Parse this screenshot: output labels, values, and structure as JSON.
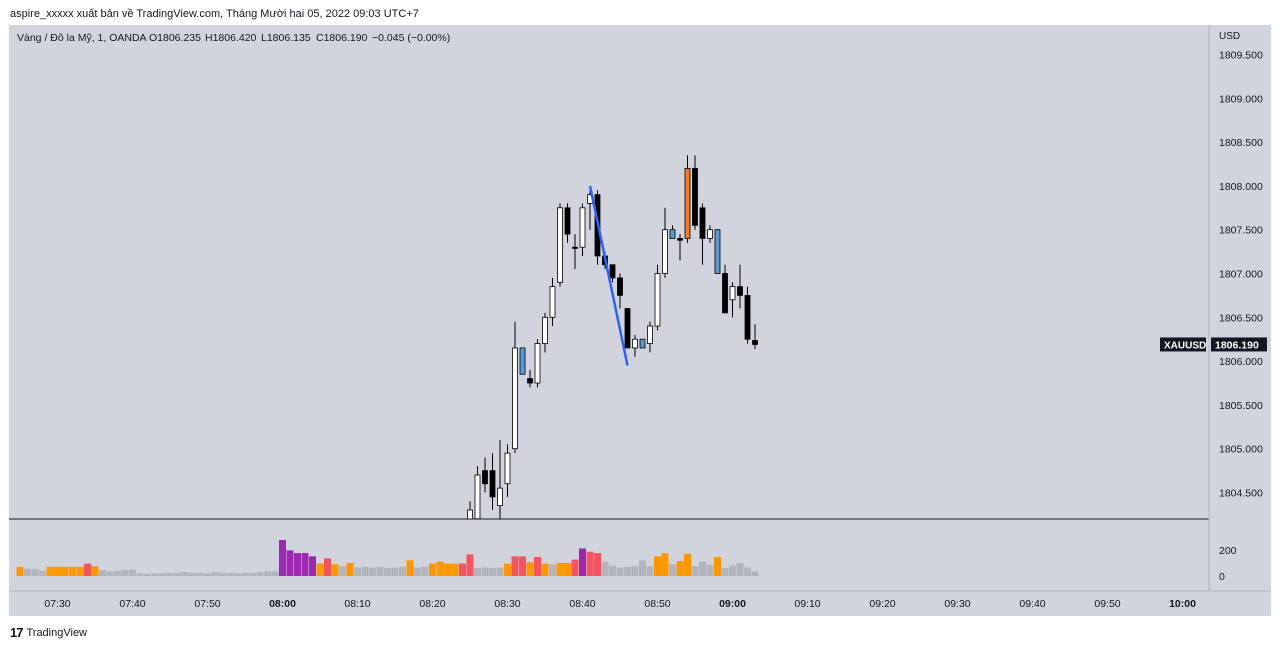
{
  "header": {
    "published_line": "aspire_xxxxx xuất bản về TradingView.com, Tháng Mười hai 05, 2022 09:03 UTC+7"
  },
  "legend": {
    "symbol_line": "Vàng / Đô la Mỹ, 1, OANDA",
    "open": "O1806.235",
    "high": "H1806.420",
    "low": "L1806.135",
    "close": "C1806.190",
    "change": "−0.045 (−0.00%)"
  },
  "price_axis": {
    "currency": "USD",
    "ticks": [
      "1809.500",
      "1809.000",
      "1808.500",
      "1808.000",
      "1807.500",
      "1807.000",
      "1806.500",
      "1806.000",
      "1805.500",
      "1805.000",
      "1804.500"
    ]
  },
  "last_price": {
    "symbol": "XAUUSD",
    "price": "1806.190"
  },
  "volume_axis": {
    "ticks": [
      "200",
      "0"
    ]
  },
  "time_axis": {
    "ticks": [
      "07:30",
      "07:40",
      "07:50",
      "08:00",
      "08:10",
      "08:20",
      "08:30",
      "08:40",
      "08:50",
      "09:00",
      "09:10",
      "09:20",
      "09:30",
      "09:40",
      "09:50",
      "10:00"
    ],
    "bold_ticks": [
      "08:00",
      "09:00",
      "10:00"
    ]
  },
  "footer": {
    "brand": "TradingView",
    "logo_text": "17"
  },
  "colors": {
    "background": "#d1d4dc",
    "candle_up": "#ffffff",
    "candle_down": "#000000",
    "candle_blue": "#5b9bd5",
    "candle_orange": "#f57c20",
    "trendline": "#2962ff",
    "vol_orange": "#ff9800",
    "vol_purple": "#9c27b0",
    "vol_red": "#f7525f",
    "vol_gray": "#b2b5be"
  },
  "chart_data": {
    "type": "candlestick",
    "price_unit": "USD",
    "ylim": [
      1804.15,
      1809.9
    ],
    "x_range": [
      "07:25",
      "10:03"
    ],
    "candles": [
      {
        "t": "08:25",
        "o": 1804.15,
        "h": 1804.4,
        "l": 1804.15,
        "c": 1804.3,
        "color": "up"
      },
      {
        "t": "08:26",
        "o": 1804.2,
        "h": 1804.8,
        "l": 1804.15,
        "c": 1804.7,
        "color": "up"
      },
      {
        "t": "08:27",
        "o": 1804.75,
        "h": 1804.9,
        "l": 1804.5,
        "c": 1804.6,
        "color": "down"
      },
      {
        "t": "08:28",
        "o": 1804.75,
        "h": 1804.95,
        "l": 1804.3,
        "c": 1804.45,
        "color": "down"
      },
      {
        "t": "08:29",
        "o": 1804.55,
        "h": 1805.1,
        "l": 1804.15,
        "c": 1804.35,
        "color": "up"
      },
      {
        "t": "08:30",
        "o": 1804.6,
        "h": 1805.05,
        "l": 1804.45,
        "c": 1804.95,
        "color": "up"
      },
      {
        "t": "08:31",
        "o": 1805.0,
        "h": 1806.45,
        "l": 1804.95,
        "c": 1806.15,
        "color": "up"
      },
      {
        "t": "08:32",
        "o": 1806.15,
        "h": 1806.15,
        "l": 1805.85,
        "c": 1805.85,
        "color": "blue"
      },
      {
        "t": "08:33",
        "o": 1805.8,
        "h": 1805.9,
        "l": 1805.7,
        "c": 1805.75,
        "color": "down"
      },
      {
        "t": "08:34",
        "o": 1805.75,
        "h": 1806.25,
        "l": 1805.7,
        "c": 1806.2,
        "color": "up"
      },
      {
        "t": "08:35",
        "o": 1806.2,
        "h": 1806.55,
        "l": 1806.1,
        "c": 1806.5,
        "color": "up"
      },
      {
        "t": "08:36",
        "o": 1806.5,
        "h": 1806.95,
        "l": 1806.4,
        "c": 1806.85,
        "color": "up"
      },
      {
        "t": "08:37",
        "o": 1806.9,
        "h": 1807.8,
        "l": 1806.85,
        "c": 1807.75,
        "color": "up"
      },
      {
        "t": "08:38",
        "o": 1807.75,
        "h": 1807.8,
        "l": 1807.35,
        "c": 1807.45,
        "color": "down"
      },
      {
        "t": "08:39",
        "o": 1807.3,
        "h": 1807.45,
        "l": 1807.05,
        "c": 1807.3,
        "color": "down"
      },
      {
        "t": "08:40",
        "o": 1807.3,
        "h": 1807.8,
        "l": 1807.2,
        "c": 1807.75,
        "color": "up"
      },
      {
        "t": "08:41",
        "o": 1807.8,
        "h": 1807.95,
        "l": 1807.5,
        "c": 1807.9,
        "color": "up"
      },
      {
        "t": "08:42",
        "o": 1807.9,
        "h": 1807.95,
        "l": 1807.1,
        "c": 1807.2,
        "color": "down"
      },
      {
        "t": "08:43",
        "o": 1807.2,
        "h": 1807.25,
        "l": 1807.05,
        "c": 1807.1,
        "color": "down"
      },
      {
        "t": "08:44",
        "o": 1807.1,
        "h": 1807.1,
        "l": 1806.9,
        "c": 1806.95,
        "color": "down"
      },
      {
        "t": "08:45",
        "o": 1806.95,
        "h": 1807.0,
        "l": 1806.6,
        "c": 1806.75,
        "color": "down"
      },
      {
        "t": "08:46",
        "o": 1806.6,
        "h": 1806.6,
        "l": 1806.15,
        "c": 1806.15,
        "color": "down"
      },
      {
        "t": "08:47",
        "o": 1806.15,
        "h": 1806.3,
        "l": 1806.05,
        "c": 1806.25,
        "color": "up"
      },
      {
        "t": "08:48",
        "o": 1806.25,
        "h": 1806.25,
        "l": 1806.15,
        "c": 1806.15,
        "color": "blue"
      },
      {
        "t": "08:49",
        "o": 1806.2,
        "h": 1806.45,
        "l": 1806.1,
        "c": 1806.4,
        "color": "up"
      },
      {
        "t": "08:50",
        "o": 1806.4,
        "h": 1807.1,
        "l": 1806.35,
        "c": 1807.0,
        "color": "up"
      },
      {
        "t": "08:51",
        "o": 1807.0,
        "h": 1807.75,
        "l": 1806.95,
        "c": 1807.5,
        "color": "up"
      },
      {
        "t": "08:52",
        "o": 1807.5,
        "h": 1807.55,
        "l": 1807.4,
        "c": 1807.4,
        "color": "blue"
      },
      {
        "t": "08:53",
        "o": 1807.4,
        "h": 1807.45,
        "l": 1807.15,
        "c": 1807.38,
        "color": "down"
      },
      {
        "t": "08:54",
        "o": 1807.4,
        "h": 1808.35,
        "l": 1807.35,
        "c": 1808.2,
        "color": "orange"
      },
      {
        "t": "08:55",
        "o": 1808.2,
        "h": 1808.35,
        "l": 1807.5,
        "c": 1807.55,
        "color": "down"
      },
      {
        "t": "08:56",
        "o": 1807.75,
        "h": 1807.8,
        "l": 1807.1,
        "c": 1807.4,
        "color": "down"
      },
      {
        "t": "08:57",
        "o": 1807.4,
        "h": 1807.55,
        "l": 1807.35,
        "c": 1807.5,
        "color": "up"
      },
      {
        "t": "08:58",
        "o": 1807.5,
        "h": 1807.5,
        "l": 1807.0,
        "c": 1807.0,
        "color": "blue"
      },
      {
        "t": "08:59",
        "o": 1807.0,
        "h": 1807.1,
        "l": 1806.55,
        "c": 1806.55,
        "color": "down"
      },
      {
        "t": "09:00",
        "o": 1806.7,
        "h": 1806.9,
        "l": 1806.5,
        "c": 1806.85,
        "color": "up"
      },
      {
        "t": "09:01",
        "o": 1806.85,
        "h": 1807.1,
        "l": 1806.6,
        "c": 1806.75,
        "color": "down"
      },
      {
        "t": "09:02",
        "o": 1806.75,
        "h": 1806.85,
        "l": 1806.2,
        "c": 1806.25,
        "color": "down"
      },
      {
        "t": "09:03",
        "o": 1806.235,
        "h": 1806.42,
        "l": 1806.135,
        "c": 1806.19,
        "color": "down"
      }
    ],
    "trendline": {
      "from": {
        "t": "08:41",
        "price": 1808.0
      },
      "to": {
        "t": "08:46",
        "price": 1805.95
      }
    },
    "volume": [
      {
        "t": "07:25",
        "v": 70,
        "c": "orange"
      },
      {
        "t": "07:26",
        "v": 55,
        "c": "gray"
      },
      {
        "t": "07:27",
        "v": 55,
        "c": "gray"
      },
      {
        "t": "07:28",
        "v": 40,
        "c": "gray"
      },
      {
        "t": "07:29",
        "v": 70,
        "c": "orange"
      },
      {
        "t": "07:30",
        "v": 70,
        "c": "orange"
      },
      {
        "t": "07:31",
        "v": 70,
        "c": "orange"
      },
      {
        "t": "07:32",
        "v": 70,
        "c": "orange"
      },
      {
        "t": "07:33",
        "v": 70,
        "c": "orange"
      },
      {
        "t": "07:34",
        "v": 95,
        "c": "red"
      },
      {
        "t": "07:35",
        "v": 75,
        "c": "orange"
      },
      {
        "t": "07:36",
        "v": 45,
        "c": "gray"
      },
      {
        "t": "07:37",
        "v": 35,
        "c": "gray"
      },
      {
        "t": "07:38",
        "v": 40,
        "c": "gray"
      },
      {
        "t": "07:39",
        "v": 45,
        "c": "gray"
      },
      {
        "t": "07:40",
        "v": 50,
        "c": "gray"
      },
      {
        "t": "07:41",
        "v": 20,
        "c": "gray"
      },
      {
        "t": "07:42",
        "v": 15,
        "c": "gray"
      },
      {
        "t": "07:43",
        "v": 20,
        "c": "gray"
      },
      {
        "t": "07:44",
        "v": 20,
        "c": "gray"
      },
      {
        "t": "07:45",
        "v": 25,
        "c": "gray"
      },
      {
        "t": "07:46",
        "v": 25,
        "c": "gray"
      },
      {
        "t": "07:47",
        "v": 30,
        "c": "gray"
      },
      {
        "t": "07:48",
        "v": 25,
        "c": "gray"
      },
      {
        "t": "07:49",
        "v": 25,
        "c": "gray"
      },
      {
        "t": "07:50",
        "v": 20,
        "c": "gray"
      },
      {
        "t": "07:51",
        "v": 30,
        "c": "gray"
      },
      {
        "t": "07:52",
        "v": 25,
        "c": "gray"
      },
      {
        "t": "07:53",
        "v": 25,
        "c": "gray"
      },
      {
        "t": "07:54",
        "v": 20,
        "c": "gray"
      },
      {
        "t": "07:55",
        "v": 25,
        "c": "gray"
      },
      {
        "t": "07:56",
        "v": 25,
        "c": "gray"
      },
      {
        "t": "07:57",
        "v": 30,
        "c": "gray"
      },
      {
        "t": "07:58",
        "v": 35,
        "c": "gray"
      },
      {
        "t": "07:59",
        "v": 35,
        "c": "gray"
      },
      {
        "t": "08:00",
        "v": 275,
        "c": "purple"
      },
      {
        "t": "08:01",
        "v": 195,
        "c": "purple"
      },
      {
        "t": "08:02",
        "v": 175,
        "c": "purple"
      },
      {
        "t": "08:03",
        "v": 175,
        "c": "purple"
      },
      {
        "t": "08:04",
        "v": 150,
        "c": "purple"
      },
      {
        "t": "08:05",
        "v": 95,
        "c": "orange"
      },
      {
        "t": "08:06",
        "v": 135,
        "c": "red"
      },
      {
        "t": "08:07",
        "v": 90,
        "c": "orange"
      },
      {
        "t": "08:08",
        "v": 75,
        "c": "gray"
      },
      {
        "t": "08:09",
        "v": 100,
        "c": "orange"
      },
      {
        "t": "08:10",
        "v": 65,
        "c": "gray"
      },
      {
        "t": "08:11",
        "v": 70,
        "c": "gray"
      },
      {
        "t": "08:12",
        "v": 65,
        "c": "gray"
      },
      {
        "t": "08:13",
        "v": 70,
        "c": "gray"
      },
      {
        "t": "08:14",
        "v": 60,
        "c": "gray"
      },
      {
        "t": "08:15",
        "v": 65,
        "c": "gray"
      },
      {
        "t": "08:16",
        "v": 70,
        "c": "gray"
      },
      {
        "t": "08:17",
        "v": 120,
        "c": "orange"
      },
      {
        "t": "08:18",
        "v": 65,
        "c": "gray"
      },
      {
        "t": "08:19",
        "v": 70,
        "c": "gray"
      },
      {
        "t": "08:20",
        "v": 95,
        "c": "orange"
      },
      {
        "t": "08:21",
        "v": 110,
        "c": "orange"
      },
      {
        "t": "08:22",
        "v": 95,
        "c": "orange"
      },
      {
        "t": "08:23",
        "v": 95,
        "c": "orange"
      },
      {
        "t": "08:24",
        "v": 95,
        "c": "red"
      },
      {
        "t": "08:25",
        "v": 165,
        "c": "red"
      },
      {
        "t": "08:26",
        "v": 60,
        "c": "gray"
      },
      {
        "t": "08:27",
        "v": 65,
        "c": "gray"
      },
      {
        "t": "08:28",
        "v": 60,
        "c": "gray"
      },
      {
        "t": "08:29",
        "v": 65,
        "c": "gray"
      },
      {
        "t": "08:30",
        "v": 95,
        "c": "orange"
      },
      {
        "t": "08:31",
        "v": 150,
        "c": "red"
      },
      {
        "t": "08:32",
        "v": 150,
        "c": "red"
      },
      {
        "t": "08:33",
        "v": 105,
        "c": "orange"
      },
      {
        "t": "08:34",
        "v": 145,
        "c": "red"
      },
      {
        "t": "08:35",
        "v": 95,
        "c": "orange"
      },
      {
        "t": "08:36",
        "v": 90,
        "c": "gray"
      },
      {
        "t": "08:37",
        "v": 100,
        "c": "orange"
      },
      {
        "t": "08:38",
        "v": 100,
        "c": "orange"
      },
      {
        "t": "08:39",
        "v": 125,
        "c": "red"
      },
      {
        "t": "08:40",
        "v": 210,
        "c": "purple"
      },
      {
        "t": "08:41",
        "v": 185,
        "c": "red"
      },
      {
        "t": "08:42",
        "v": 175,
        "c": "red"
      },
      {
        "t": "08:43",
        "v": 110,
        "c": "gray"
      },
      {
        "t": "08:44",
        "v": 80,
        "c": "gray"
      },
      {
        "t": "08:45",
        "v": 65,
        "c": "gray"
      },
      {
        "t": "08:46",
        "v": 70,
        "c": "gray"
      },
      {
        "t": "08:47",
        "v": 75,
        "c": "gray"
      },
      {
        "t": "08:48",
        "v": 120,
        "c": "gray"
      },
      {
        "t": "08:49",
        "v": 75,
        "c": "gray"
      },
      {
        "t": "08:50",
        "v": 150,
        "c": "orange"
      },
      {
        "t": "08:51",
        "v": 175,
        "c": "orange"
      },
      {
        "t": "08:52",
        "v": 90,
        "c": "gray"
      },
      {
        "t": "08:53",
        "v": 115,
        "c": "orange"
      },
      {
        "t": "08:54",
        "v": 170,
        "c": "orange"
      },
      {
        "t": "08:55",
        "v": 75,
        "c": "gray"
      },
      {
        "t": "08:56",
        "v": 110,
        "c": "gray"
      },
      {
        "t": "08:57",
        "v": 85,
        "c": "gray"
      },
      {
        "t": "08:58",
        "v": 145,
        "c": "orange"
      },
      {
        "t": "08:59",
        "v": 60,
        "c": "gray"
      },
      {
        "t": "09:00",
        "v": 80,
        "c": "gray"
      },
      {
        "t": "09:01",
        "v": 100,
        "c": "gray"
      },
      {
        "t": "09:02",
        "v": 65,
        "c": "gray"
      },
      {
        "t": "09:03",
        "v": 35,
        "c": "gray"
      }
    ]
  }
}
